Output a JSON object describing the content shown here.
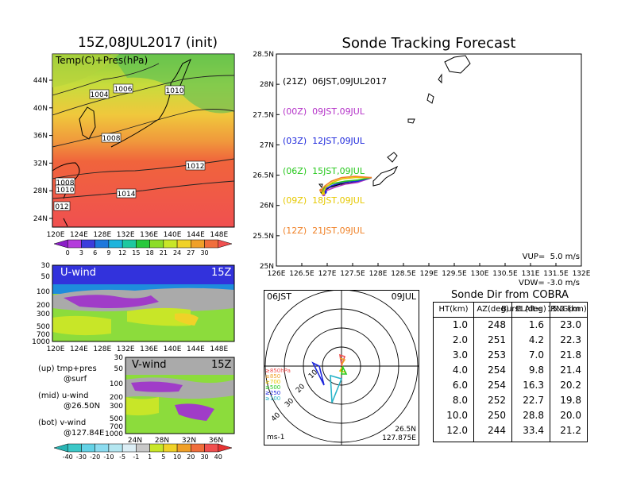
{
  "left_title": "15Z,08JUL2017 (init)",
  "right_title": "Sonde Tracking Forecast",
  "map_panel": {
    "label": "Temp(C)+Pres(hPa)",
    "lat_ticks": [
      "44N",
      "40N",
      "36N",
      "32N",
      "28N",
      "24N"
    ],
    "lon_ticks": [
      "120E",
      "124E",
      "128E",
      "132E",
      "136E",
      "140E",
      "144E",
      "148E"
    ],
    "isobar_labels": [
      "1004",
      "1006",
      "1010",
      "1008",
      "1012",
      "1008",
      "1010",
      "1014",
      "012"
    ],
    "colorbar_ticks": [
      "0",
      "3",
      "6",
      "9",
      "12",
      "15",
      "18",
      "21",
      "24",
      "27",
      "30"
    ],
    "colorbar_colors": [
      "#8c1ec8",
      "#b43cdc",
      "#3c3cdc",
      "#1e78dc",
      "#1eb4dc",
      "#1ec8a0",
      "#28c83c",
      "#8cdc28",
      "#c8e628",
      "#f0d228",
      "#f0a028",
      "#f06e3c",
      "#f05050"
    ]
  },
  "uwind_panel": {
    "label": "U-wind",
    "time": "15Z",
    "y_ticks": [
      "30",
      "50",
      "100",
      "200",
      "300",
      "500",
      "700",
      "1000"
    ],
    "x_ticks": [
      "120E",
      "124E",
      "128E",
      "132E",
      "136E",
      "140E",
      "144E",
      "148E"
    ]
  },
  "vwind_panel": {
    "label": "V-wind",
    "time": "15Z",
    "y_ticks": [
      "30",
      "50",
      "100",
      "200",
      "300",
      "500",
      "700",
      "1000"
    ],
    "x_ticks": [
      "24N",
      "28N",
      "32N",
      "36N"
    ],
    "colorbar_ticks": [
      "-40",
      "-30",
      "-20",
      "-10",
      "-5",
      "-1",
      "1",
      "5",
      "10",
      "20",
      "30",
      "40"
    ],
    "colorbar_colors": [
      "#28b4b4",
      "#3cc8c8",
      "#64d2e6",
      "#8cdcf0",
      "#b4e6f0",
      "#dceef5",
      "#c8c8c8",
      "#c8e628",
      "#f0d228",
      "#f0a028",
      "#f06e3c",
      "#f05050",
      "#e63232"
    ]
  },
  "notes": [
    {
      "line1": "(up)  tmp+pres",
      "line2": "@surf"
    },
    {
      "line1": "(mid)  u-wind",
      "line2": "@26.50N"
    },
    {
      "line1": "(bot)  v-wind",
      "line2": "@127.84E"
    }
  ],
  "track": {
    "legend": [
      {
        "code": "(21Z)",
        "text": "06JST,09JUL2017",
        "color": "#000000"
      },
      {
        "code": "(00Z)",
        "text": "09JST,09JUL",
        "color": "#b432c8"
      },
      {
        "code": "(03Z)",
        "text": "12JST,09JUL",
        "color": "#1e28dc"
      },
      {
        "code": "(06Z)",
        "text": "15JST,09JUL",
        "color": "#28c81e"
      },
      {
        "code": "(09Z)",
        "text": "18JST,09JUL",
        "color": "#e6c800"
      },
      {
        "code": "(12Z)",
        "text": "21JST,09JUL",
        "color": "#f08228"
      }
    ],
    "info": [
      "VUP=  5.0 m/s",
      "VDW= -3.0 m/s",
      "Burst Alt=  15.0 km"
    ]
  },
  "polar": {
    "left_label": "06JST",
    "right_label": "09JUL",
    "pos1": "26.5N",
    "pos2": "127.875E",
    "unit": "ms-1",
    "ring_labels": [
      "10",
      "20",
      "30",
      "40"
    ],
    "level_labels": [
      {
        "text": "≥850hPa",
        "color": "#f05050"
      },
      {
        "text": "≥850",
        "color": "#f0a028"
      },
      {
        "text": "≥700",
        "color": "#e6c800"
      },
      {
        "text": "≥500",
        "color": "#28c81e"
      },
      {
        "text": "≥250",
        "color": "#1e28dc"
      },
      {
        "text": "≥100",
        "color": "#28b4c8"
      }
    ]
  },
  "sonde_table": {
    "title": "Sonde Dir from COBRA",
    "headers": [
      "HT(km)",
      "AZ(deg)",
      "EL(deg)",
      "RNG(km)"
    ],
    "rows": [
      [
        "1.0",
        "248",
        "1.6",
        "23.0"
      ],
      [
        "2.0",
        "251",
        "4.2",
        "22.3"
      ],
      [
        "3.0",
        "253",
        "7.0",
        "21.8"
      ],
      [
        "4.0",
        "254",
        "9.8",
        "21.4"
      ],
      [
        "6.0",
        "254",
        "16.3",
        "20.2"
      ],
      [
        "8.0",
        "252",
        "22.7",
        "19.8"
      ],
      [
        "10.0",
        "250",
        "28.8",
        "20.0"
      ],
      [
        "12.0",
        "244",
        "33.4",
        "21.2"
      ]
    ]
  },
  "chart_data": [
    {
      "type": "line",
      "xlabel": "",
      "ylabel": "",
      "xlim": [
        126,
        132
      ],
      "ylim": [
        25,
        28.5
      ],
      "x_ticks": [
        "126E",
        "126.5E",
        "127E",
        "127.5E",
        "128E",
        "128.5E",
        "129E",
        "129.5E",
        "130E",
        "130.5E",
        "131E",
        "131.5E",
        "132E"
      ],
      "y_ticks": [
        "28.5N",
        "28N",
        "27.5N",
        "27N",
        "26.5N",
        "26N",
        "25.5N",
        "25N"
      ],
      "series": [
        {
          "name": "(21Z)",
          "color": "#000000",
          "lon": [
            127.875,
            127.65,
            127.45,
            127.25,
            127.05,
            126.95,
            126.9
          ],
          "lat": [
            26.46,
            26.4,
            26.37,
            26.35,
            26.3,
            26.25,
            26.22
          ]
        },
        {
          "name": "(00Z)",
          "color": "#b432c8",
          "lon": [
            127.875,
            127.6,
            127.35,
            127.15,
            127.0,
            126.93
          ],
          "lat": [
            26.46,
            26.38,
            26.35,
            26.3,
            26.25,
            26.18
          ]
        },
        {
          "name": "(03Z)",
          "color": "#1e28dc",
          "lon": [
            127.875,
            127.6,
            127.3,
            127.1,
            126.98,
            126.96
          ],
          "lat": [
            26.46,
            26.4,
            26.38,
            26.33,
            26.28,
            26.22
          ]
        },
        {
          "name": "(06Z)",
          "color": "#28c81e",
          "lon": [
            127.875,
            127.6,
            127.35,
            127.1,
            126.95,
            126.9
          ],
          "lat": [
            26.46,
            26.42,
            26.4,
            26.36,
            26.3,
            26.24
          ]
        },
        {
          "name": "(09Z)",
          "color": "#e6c800",
          "lon": [
            127.875,
            127.55,
            127.3,
            127.1,
            126.97,
            126.92
          ],
          "lat": [
            26.46,
            26.46,
            26.44,
            26.38,
            26.3,
            26.2
          ]
        },
        {
          "name": "(12Z)",
          "color": "#f08228",
          "lon": [
            127.875,
            127.55,
            127.28,
            127.08,
            126.95,
            126.88
          ],
          "lat": [
            26.46,
            26.48,
            26.46,
            26.4,
            26.32,
            26.25
          ]
        }
      ]
    }
  ]
}
